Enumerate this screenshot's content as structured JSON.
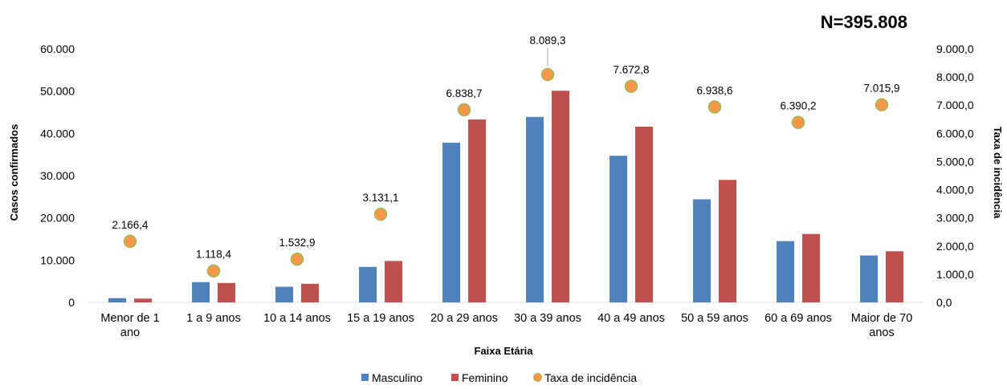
{
  "chart_data": {
    "type": "bar",
    "n_label": "N=395.808",
    "categories": [
      [
        "Menor de 1",
        "ano"
      ],
      [
        "1 a 9 anos"
      ],
      [
        "10 a 14 anos"
      ],
      [
        "15 a 19 anos"
      ],
      [
        "20 a 29 anos"
      ],
      [
        "30 a 39 anos"
      ],
      [
        "40 a 49 anos"
      ],
      [
        "50 a 59 anos"
      ],
      [
        "60 a 69 anos"
      ],
      [
        "Maior de 70",
        "anos"
      ]
    ],
    "series": [
      {
        "name": "Masculino",
        "kind": "bar",
        "axis": "left",
        "color": "#4f81bd",
        "values": [
          1000,
          4800,
          3700,
          8400,
          37800,
          43900,
          34700,
          24400,
          14500,
          11100
        ]
      },
      {
        "name": "Feminino",
        "kind": "bar",
        "axis": "left",
        "color": "#c0504d",
        "values": [
          900,
          4600,
          4400,
          9800,
          43300,
          50100,
          41600,
          29000,
          16200,
          12100
        ]
      },
      {
        "name": "Taxa de incidência",
        "kind": "scatter",
        "axis": "right",
        "color": "#f79646",
        "stroke": "#9bbb59",
        "values": [
          2166.4,
          1118.4,
          1532.9,
          3131.1,
          6838.7,
          8089.3,
          7672.8,
          6938.6,
          6390.2,
          7015.9
        ],
        "labels": [
          "2.166,4",
          "1.118,4",
          "1.532,9",
          "3.131,1",
          "6.838,7",
          "8.089,3",
          "7.672,8",
          "6.938,6",
          "6.390,2",
          "7.015,9"
        ]
      }
    ],
    "xlabel": "Faixa Etária",
    "ylabel": "Casos confirmados",
    "y2label": "Taxa de incidência",
    "ylim": [
      0,
      60000
    ],
    "y2lim": [
      0,
      9000
    ],
    "yticks": [
      "0",
      "10.000",
      "20.000",
      "30.000",
      "40.000",
      "50.000",
      "60.000"
    ],
    "y2ticks": [
      "0,0",
      "1.000,0",
      "2.000,0",
      "3.000,0",
      "4.000,0",
      "5.000,0",
      "6.000,0",
      "7.000,0",
      "8.000,0",
      "9.000,0"
    ],
    "grid": false,
    "legend_position": "bottom"
  }
}
